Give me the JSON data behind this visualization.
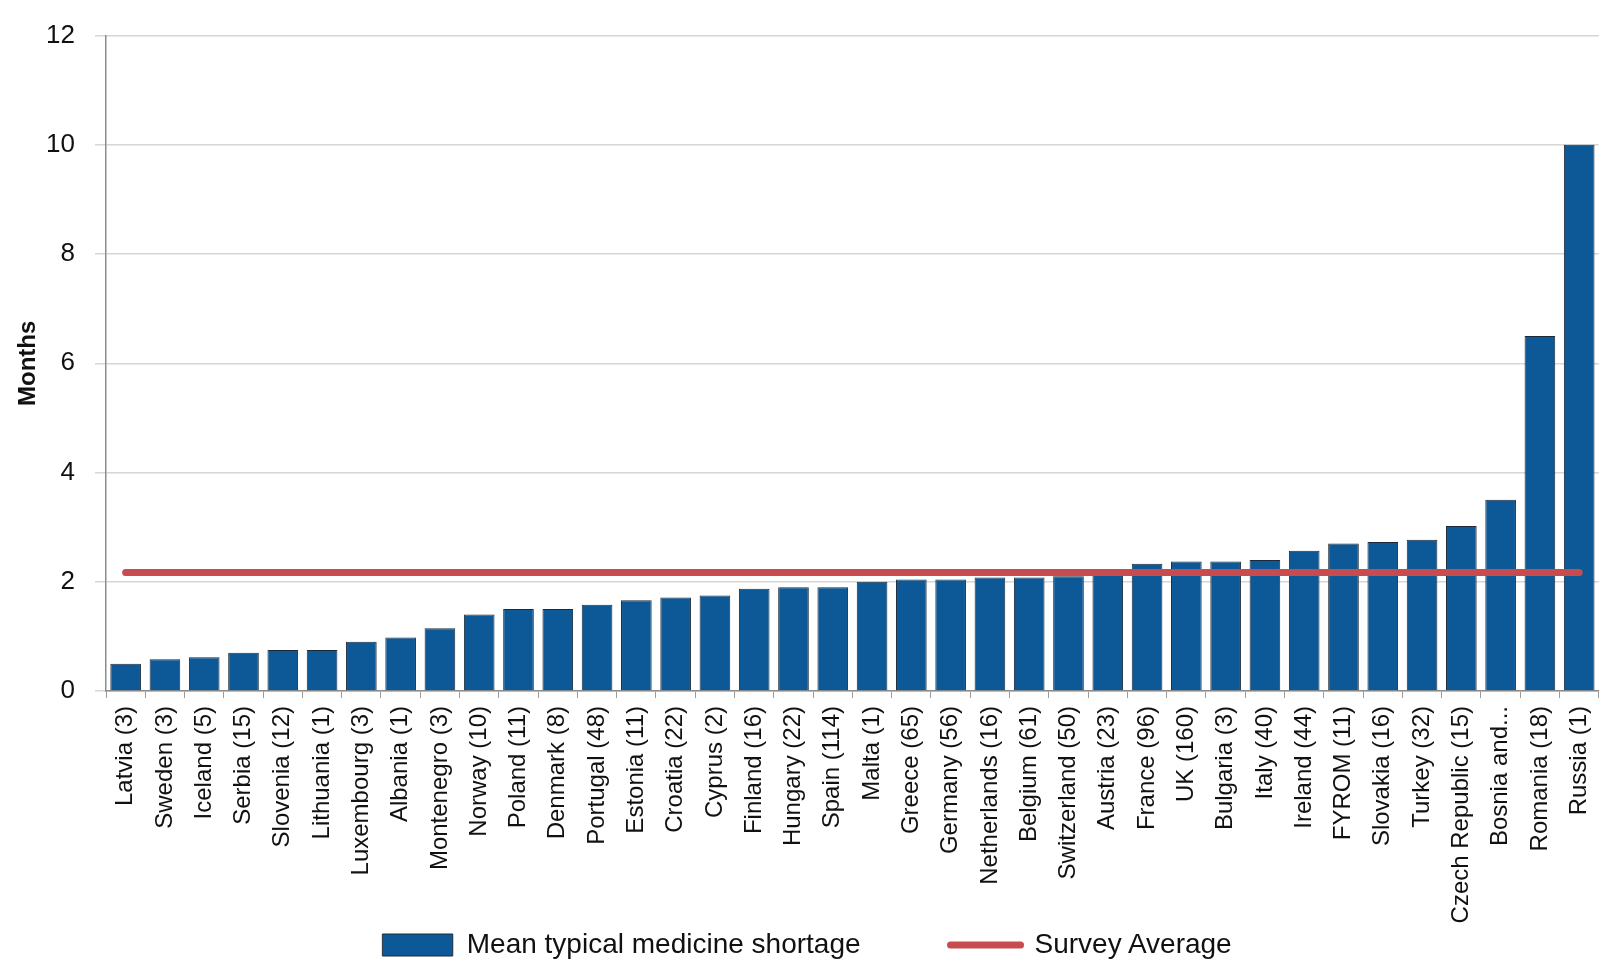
{
  "chart_data": {
    "type": "bar",
    "ylabel": "Months",
    "categories": [
      "Latvia (3)",
      "Sweden (3)",
      "Iceland (5)",
      "Serbia (15)",
      "Slovenia (12)",
      "Lithuania (1)",
      "Luxembourg (3)",
      "Albania (1)",
      "Montenegro (3)",
      "Norway (10)",
      "Poland (11)",
      "Denmark (8)",
      "Portugal (48)",
      "Estonia (11)",
      "Croatia (22)",
      "Cyprus (2)",
      "Finland (16)",
      "Hungary (22)",
      "Spain (114)",
      "Malta (1)",
      "Greece (65)",
      "Germany (56)",
      "Netherlands (16)",
      "Belgium (61)",
      "Switzerland (50)",
      "Austria (23)",
      "France (96)",
      "UK (160)",
      "Bulgaria (3)",
      "Italy (40)",
      "Ireland (44)",
      "FYROM (11)",
      "Slovakia (16)",
      "Turkey (32)",
      "Czech Republic (15)",
      "Bosnia and...",
      "Romania (18)",
      "Russia (1)"
    ],
    "series": [
      {
        "name": "Mean typical medicine shortage",
        "color": "#0d5896",
        "values": [
          0.5,
          0.58,
          0.62,
          0.7,
          0.75,
          0.75,
          0.9,
          0.98,
          1.15,
          1.4,
          1.5,
          1.5,
          1.58,
          1.66,
          1.71,
          1.75,
          1.87,
          1.9,
          1.9,
          2.0,
          2.04,
          2.04,
          2.08,
          2.08,
          2.1,
          2.15,
          2.33,
          2.37,
          2.37,
          2.4,
          2.57,
          2.7,
          2.73,
          2.77,
          3.02,
          3.5,
          6.5,
          10.0
        ]
      },
      {
        "name": "Survey Average",
        "type": "line",
        "color": "#c84b4f",
        "values": [
          2.17,
          2.17,
          2.17,
          2.17,
          2.17,
          2.17,
          2.17,
          2.17,
          2.17,
          2.17,
          2.17,
          2.17,
          2.17,
          2.17,
          2.17,
          2.17,
          2.17,
          2.17,
          2.17,
          2.17,
          2.17,
          2.17,
          2.17,
          2.17,
          2.17,
          2.17,
          2.17,
          2.17,
          2.17,
          2.17,
          2.17,
          2.17,
          2.17,
          2.17,
          2.17,
          2.17,
          2.17,
          2.17
        ]
      }
    ],
    "ylim": [
      0,
      12
    ],
    "yticks": [
      0,
      2,
      4,
      6,
      8,
      10,
      12
    ],
    "grid": "y",
    "legend": "bottom",
    "marker": "none"
  }
}
